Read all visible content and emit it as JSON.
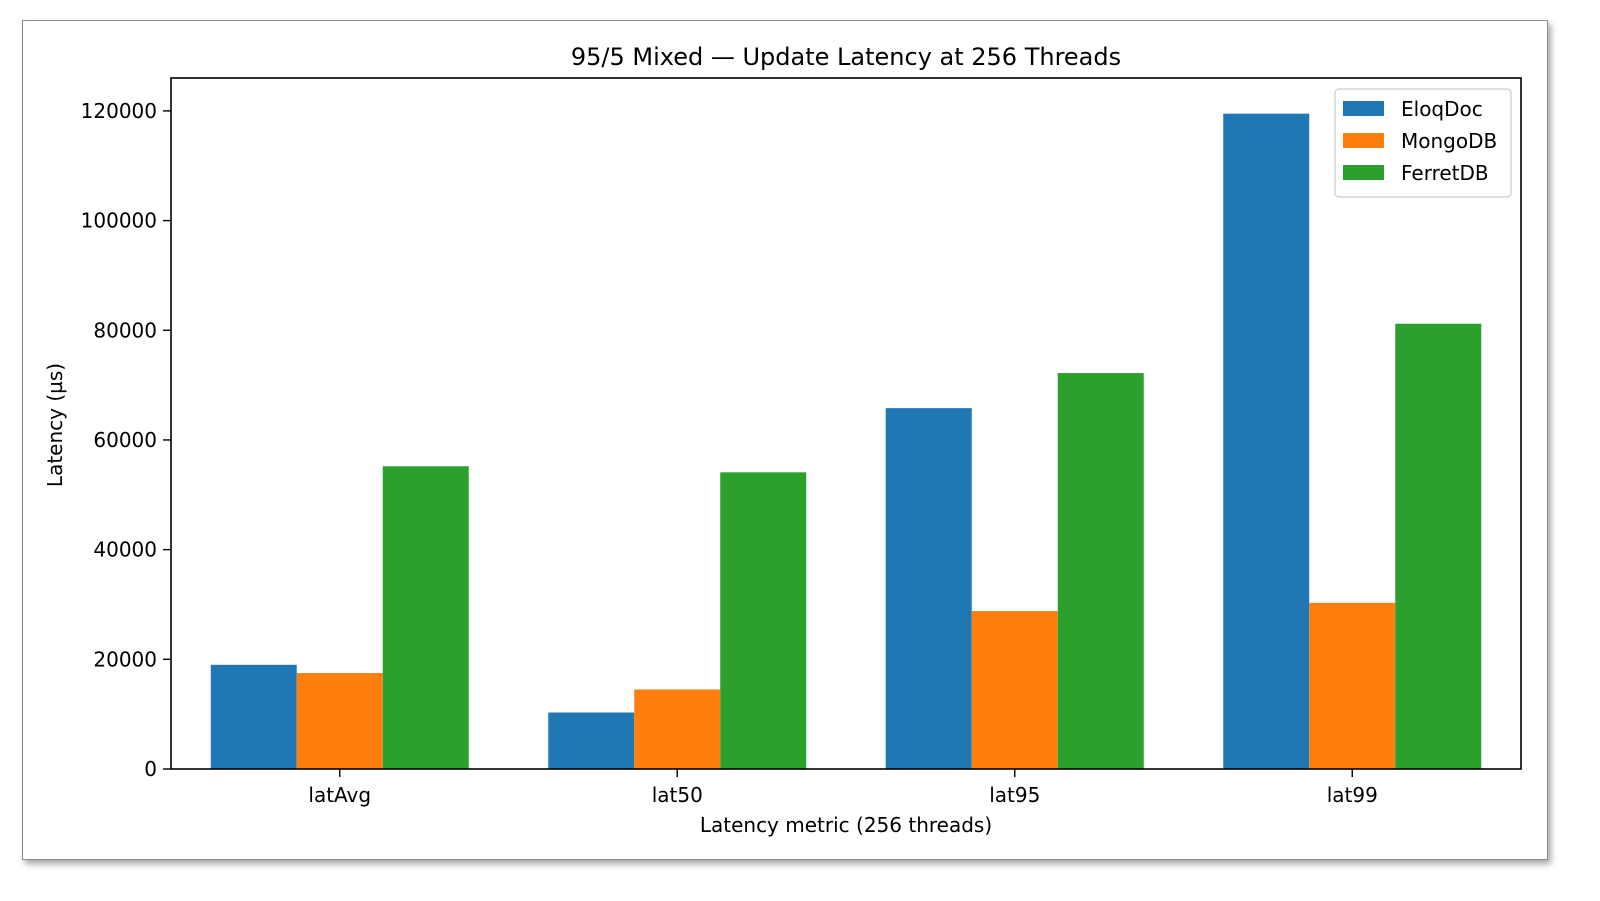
{
  "chart_data": {
    "type": "bar",
    "title": "95/5 Mixed — Update Latency at 256 Threads",
    "xlabel": "Latency metric (256 threads)",
    "ylabel": "Latency (µs)",
    "categories": [
      "latAvg",
      "lat50",
      "lat95",
      "lat99"
    ],
    "ylim": [
      0,
      126000
    ],
    "yticks": [
      0,
      20000,
      40000,
      60000,
      80000,
      100000,
      120000
    ],
    "grid": false,
    "legend_position": "top-right",
    "series": [
      {
        "name": "EloqDoc",
        "color": "#1f77b4",
        "values": [
          19000,
          10300,
          65800,
          119500
        ]
      },
      {
        "name": "MongoDB",
        "color": "#ff7f0e",
        "values": [
          17500,
          14500,
          28800,
          30300
        ]
      },
      {
        "name": "FerretDB",
        "color": "#2ca02c",
        "values": [
          55200,
          54100,
          72200,
          81200
        ]
      }
    ]
  }
}
